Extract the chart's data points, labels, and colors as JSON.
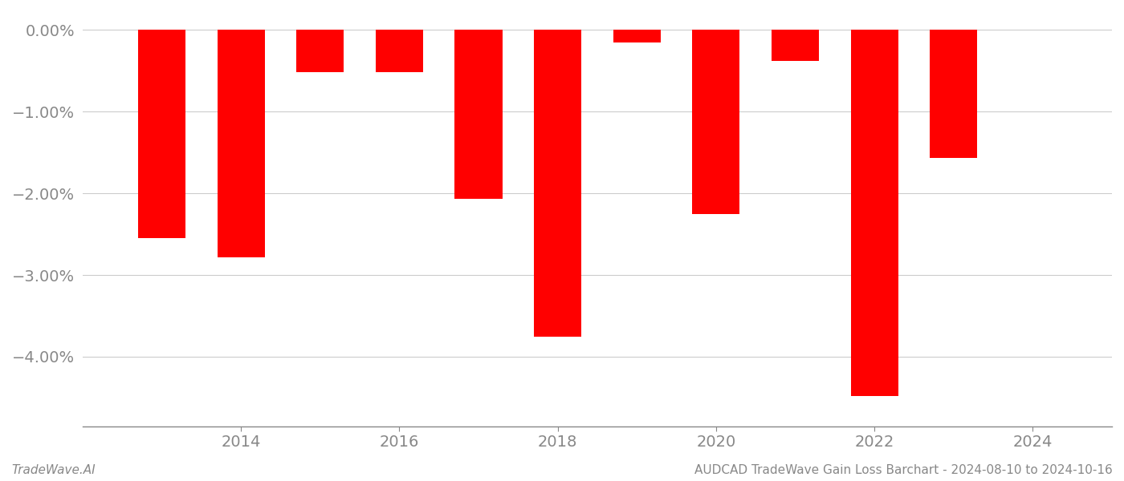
{
  "years": [
    2013,
    2014,
    2015,
    2016,
    2017,
    2018,
    2019,
    2020,
    2021,
    2022,
    2023
  ],
  "values": [
    -2.55,
    -2.78,
    -0.52,
    -0.52,
    -2.07,
    -3.75,
    -0.15,
    -2.25,
    -0.38,
    -4.48,
    -1.57
  ],
  "bar_color": "#ff0000",
  "bar_width": 0.6,
  "ylim_min": -4.85,
  "ylim_max": 0.22,
  "yticks": [
    0.0,
    -1.0,
    -2.0,
    -3.0,
    -4.0
  ],
  "ytick_labels": [
    "0.00%",
    "−1.00%",
    "−2.00%",
    "−3.00%",
    "−4.00%"
  ],
  "xlim_min": 2012.0,
  "xlim_max": 2025.0,
  "xticks": [
    2014,
    2016,
    2018,
    2020,
    2022,
    2024
  ],
  "footer_left": "TradeWave.AI",
  "footer_right": "AUDCAD TradeWave Gain Loss Barchart - 2024-08-10 to 2024-10-16",
  "background_color": "#ffffff",
  "grid_color": "#cccccc",
  "tick_color": "#888888",
  "spine_color": "#888888",
  "footer_fontsize": 11,
  "tick_fontsize": 14
}
